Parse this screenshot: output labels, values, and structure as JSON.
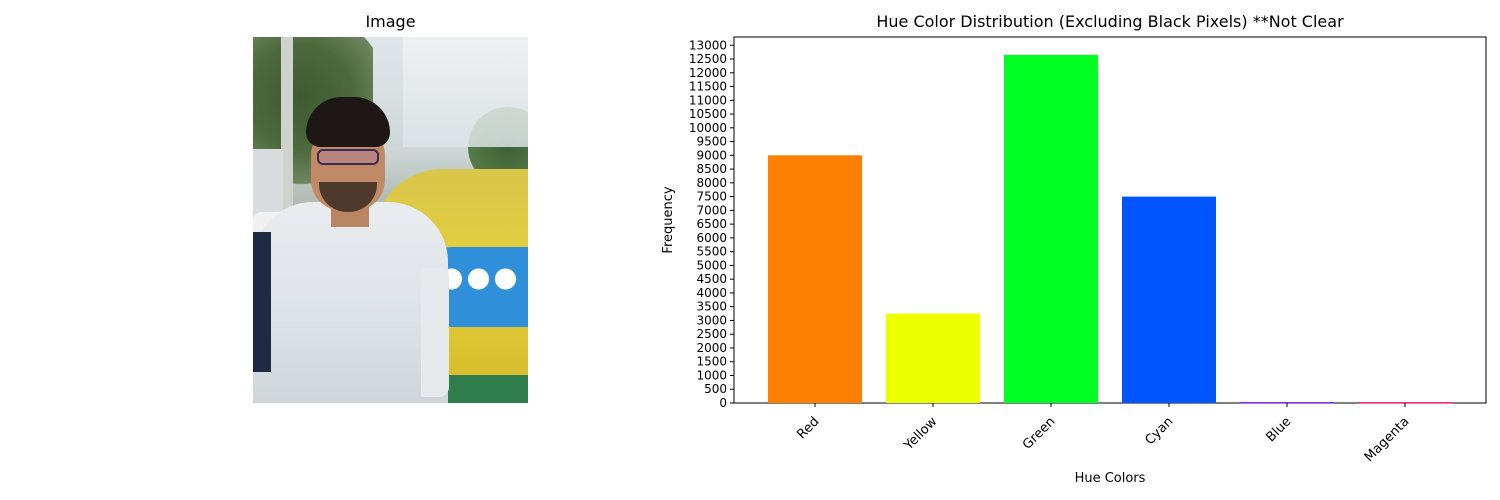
{
  "image_panel": {
    "title": "Image"
  },
  "chart_data": {
    "type": "bar",
    "title": "Hue Color Distribution (Excluding Black Pixels) **Not Clear",
    "xlabel": "Hue Colors",
    "ylabel": "Frequency",
    "categories": [
      "Red",
      "Yellow",
      "Green",
      "Cyan",
      "Blue",
      "Magenta"
    ],
    "values": [
      9000,
      3250,
      12650,
      7500,
      30,
      30
    ],
    "colors": [
      "#ff7f00",
      "#eeff00",
      "#00ff22",
      "#0055ff",
      "#6600ff",
      "#ff0055"
    ],
    "ylim": [
      0,
      13300
    ],
    "ytick_step": 500,
    "grid": false,
    "legend": false,
    "xtick_rotation": 45
  }
}
